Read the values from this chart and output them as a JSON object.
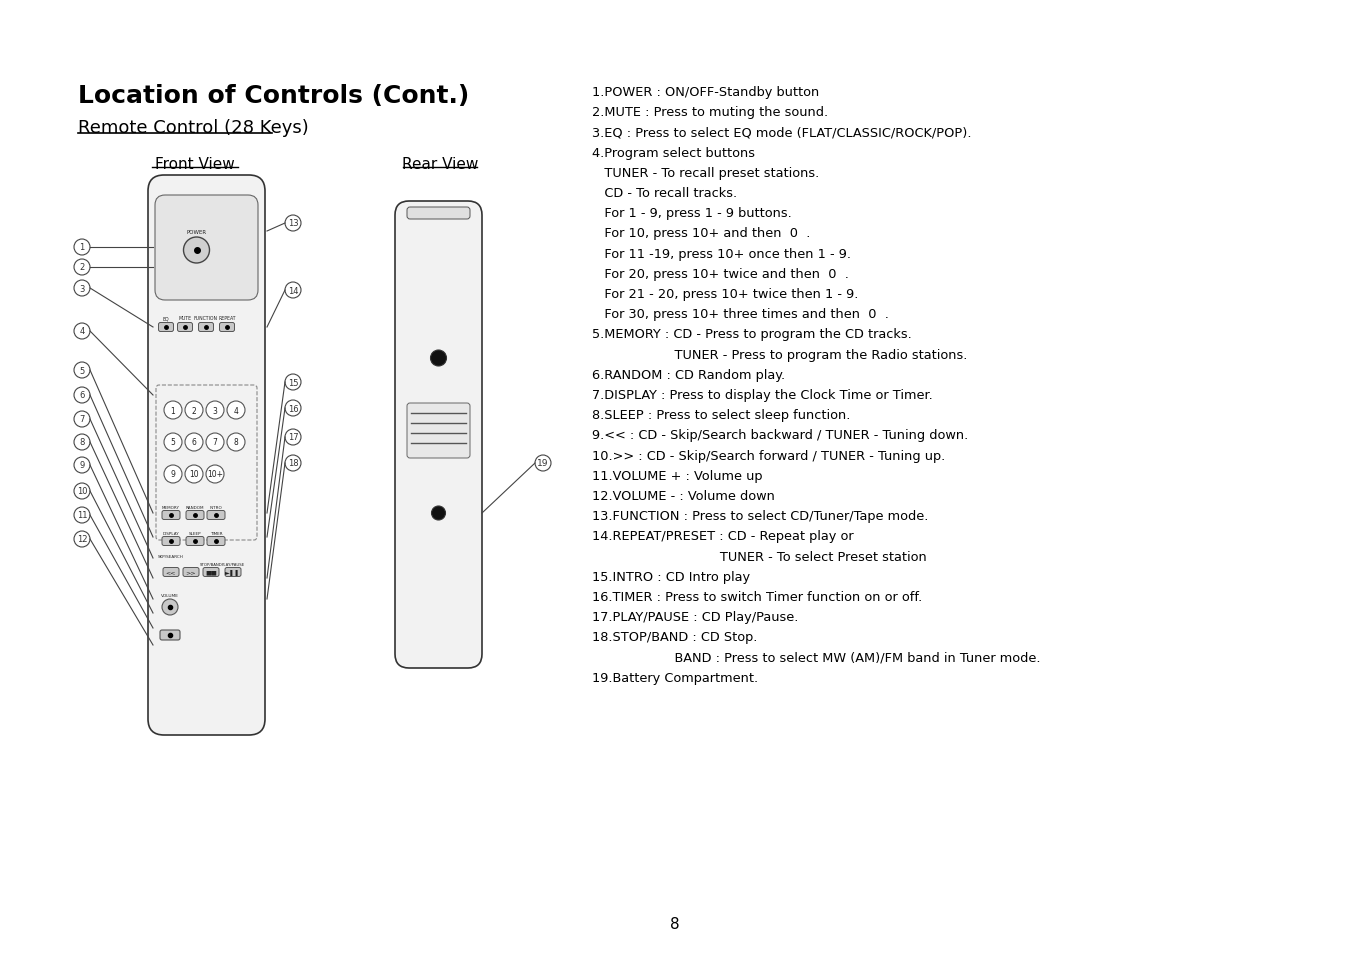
{
  "title": "Location of Controls (Cont.)",
  "subtitle": "Remote Control (28 Keys)",
  "front_view_label": "Front View",
  "rear_view_label": "Rear View",
  "page_number": "8",
  "bg_color": "#ffffff",
  "text_color": "#000000",
  "descriptions": [
    "1.POWER : ON/OFF-Standby button",
    "2.MUTE : Press to muting the sound.",
    "3.EQ : Press to select EQ mode (FLAT/CLASSIC/ROCK/POP).",
    "4.Program select buttons",
    "   TUNER - To recall preset stations.",
    "   CD - To recall tracks.",
    "   For 1 - 9, press 1 - 9 buttons.",
    "   For 10, press 10+ and then  0  .",
    "   For 11 -19, press 10+ once then 1 - 9.",
    "   For 20, press 10+ twice and then  0  .",
    "   For 21 - 20, press 10+ twice then 1 - 9.",
    "   For 30, press 10+ three times and then  0  .",
    "5.MEMORY : CD - Press to program the CD tracks.",
    "                    TUNER - Press to program the Radio stations.",
    "6.RANDOM : CD Random play.",
    "7.DISPLAY : Press to display the Clock Time or Timer.",
    "8.SLEEP : Press to select sleep function.",
    "9.<< : CD - Skip/Search backward / TUNER - Tuning down.",
    "10.>> : CD - Skip/Search forward / TUNER - Tuning up.",
    "11.VOLUME + : Volume up",
    "12.VOLUME - : Volume down",
    "13.FUNCTION : Press to select CD/Tuner/Tape mode.",
    "14.REPEAT/PRESET : CD - Repeat play or",
    "                               TUNER - To select Preset station",
    "15.INTRO : CD Intro play",
    "16.TIMER : Press to switch Timer function on or off.",
    "17.PLAY/PAUSE : CD Play/Pause.",
    "18.STOP/BAND : CD Stop.",
    "                    BAND : Press to select MW (AM)/FM band in Tuner mode.",
    "19.Battery Compartment."
  ]
}
